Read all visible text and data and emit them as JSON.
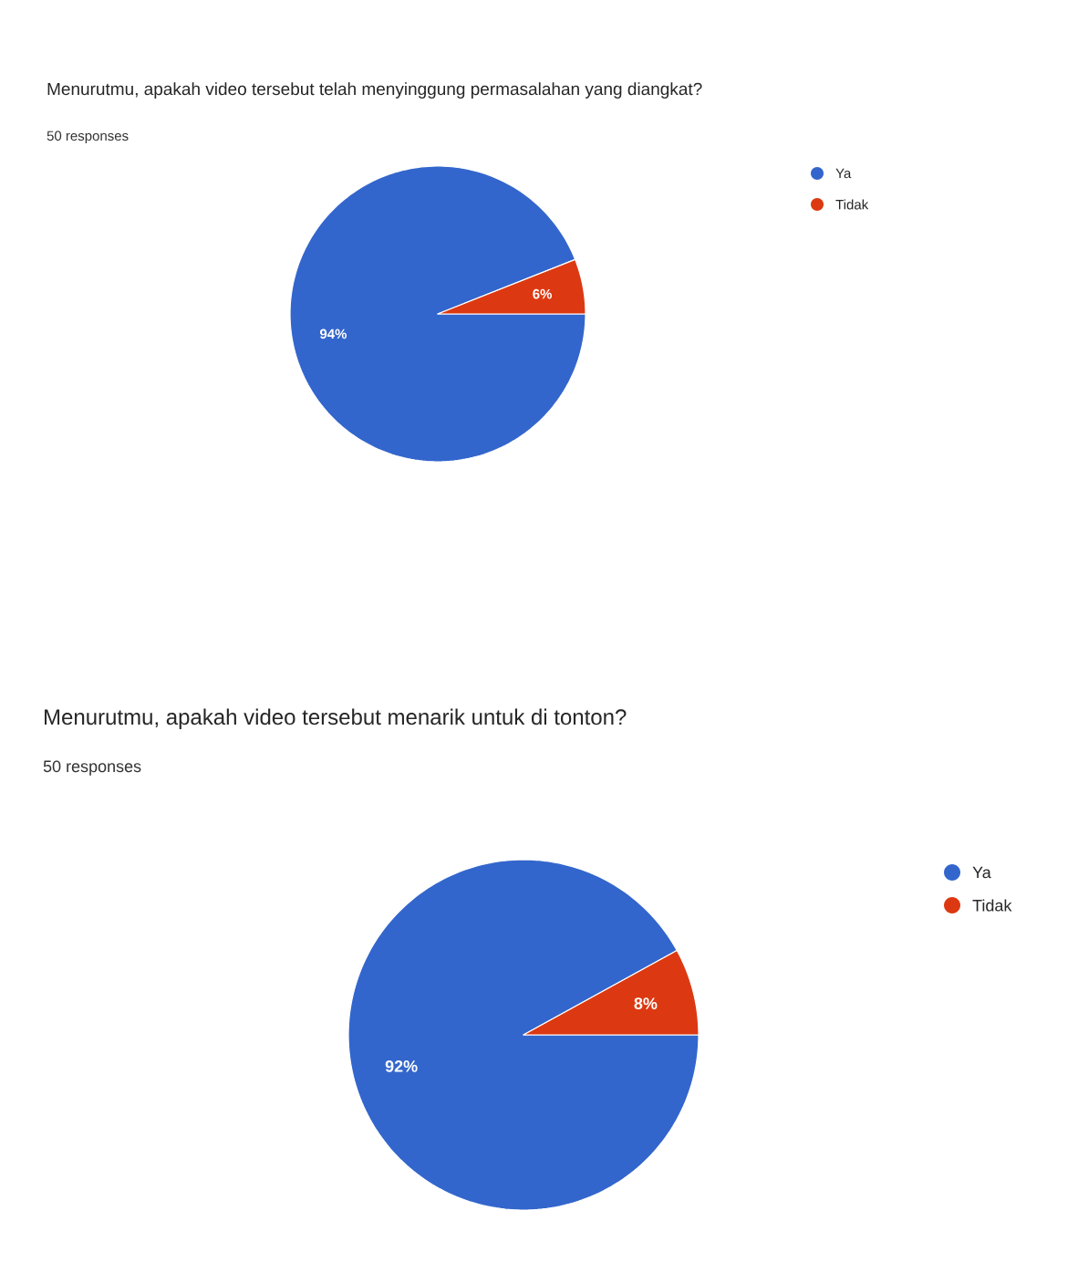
{
  "chart_data": [
    {
      "type": "pie",
      "title": "Menurutmu, apakah video tersebut telah menyinggung permasalahan yang diangkat?",
      "subtitle": "50 responses",
      "categories": [
        "Ya",
        "Tidak"
      ],
      "values": [
        94,
        6
      ],
      "colors": [
        "#3366cc",
        "#dc3912"
      ],
      "value_labels": [
        "94%",
        "6%"
      ],
      "legend": "top right"
    },
    {
      "type": "pie",
      "title": "Menurutmu, apakah video tersebut menarik untuk di tonton?",
      "subtitle": "50 responses",
      "categories": [
        "Ya",
        "Tidak"
      ],
      "values": [
        92,
        8
      ],
      "colors": [
        "#3366cc",
        "#dc3912"
      ],
      "value_labels": [
        "92%",
        "8%"
      ],
      "legend": "top right"
    }
  ]
}
